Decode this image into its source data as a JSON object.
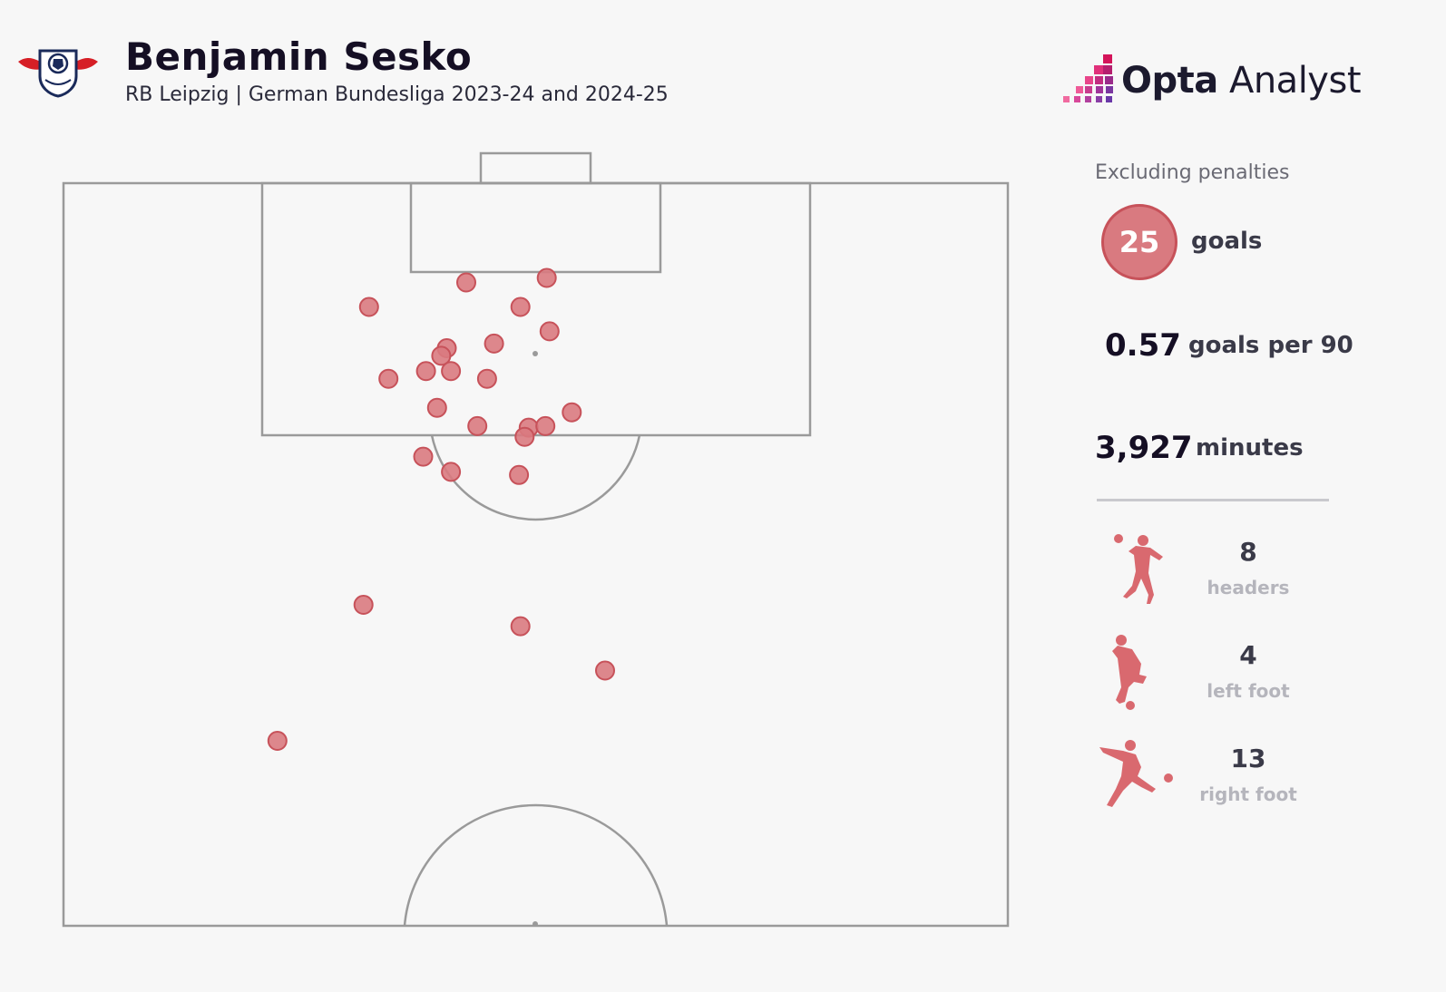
{
  "header": {
    "title": "Benjamin Sesko",
    "subtitle": "RB Leipzig | German Bundesliga 2023-24 and 2024-25",
    "club_logo_icon": "rb-leipzig-crest-icon"
  },
  "brand": {
    "name_bold": "Opta",
    "name_light": "Analyst",
    "logo_icon": "opta-bars-icon"
  },
  "colors": {
    "marker_fill": "#d97a80",
    "marker_stroke": "#c7525a",
    "pitch_line": "#9a9a9a",
    "background": "#f7f7f7"
  },
  "stats": {
    "note": "Excluding penalties",
    "goals_value": "25",
    "goals_label": "goals",
    "g90_value": "0.57",
    "g90_label": "goals per 90",
    "minutes_value": "3,927",
    "minutes_label": "minutes"
  },
  "body_parts": [
    {
      "count": "8",
      "label": "headers",
      "icon": "header-player-icon"
    },
    {
      "count": "4",
      "label": "left foot",
      "icon": "left-foot-player-icon"
    },
    {
      "count": "13",
      "label": "right foot",
      "icon": "right-foot-player-icon"
    }
  ],
  "chart_data": {
    "type": "scatter",
    "title": "Benjamin Sesko",
    "subtitle": "RB Leipzig | German Bundesliga 2023-24 and 2024-25",
    "description_units": "x = width across pitch in metres (0-68, left to right), y = distance from goal line in metres",
    "points": [
      {
        "x": 29.0,
        "y": 6.5
      },
      {
        "x": 34.8,
        "y": 6.2
      },
      {
        "x": 22.0,
        "y": 8.1
      },
      {
        "x": 32.9,
        "y": 8.1
      },
      {
        "x": 35.0,
        "y": 9.7
      },
      {
        "x": 31.0,
        "y": 10.5
      },
      {
        "x": 27.6,
        "y": 10.8
      },
      {
        "x": 27.2,
        "y": 11.3
      },
      {
        "x": 23.4,
        "y": 12.8
      },
      {
        "x": 26.1,
        "y": 12.3
      },
      {
        "x": 27.9,
        "y": 12.3
      },
      {
        "x": 30.5,
        "y": 12.8
      },
      {
        "x": 26.9,
        "y": 14.7
      },
      {
        "x": 36.6,
        "y": 15.0
      },
      {
        "x": 29.8,
        "y": 15.9
      },
      {
        "x": 33.5,
        "y": 16.0
      },
      {
        "x": 34.7,
        "y": 15.9
      },
      {
        "x": 33.2,
        "y": 16.6
      },
      {
        "x": 25.9,
        "y": 17.9
      },
      {
        "x": 27.9,
        "y": 18.9
      },
      {
        "x": 32.8,
        "y": 19.1
      },
      {
        "x": 21.6,
        "y": 27.6
      },
      {
        "x": 32.9,
        "y": 29.0
      },
      {
        "x": 39.0,
        "y": 31.9
      },
      {
        "x": 15.4,
        "y": 36.5
      }
    ],
    "pitch": {
      "view": "half-pitch, attacking goal at top",
      "grid": false
    }
  }
}
